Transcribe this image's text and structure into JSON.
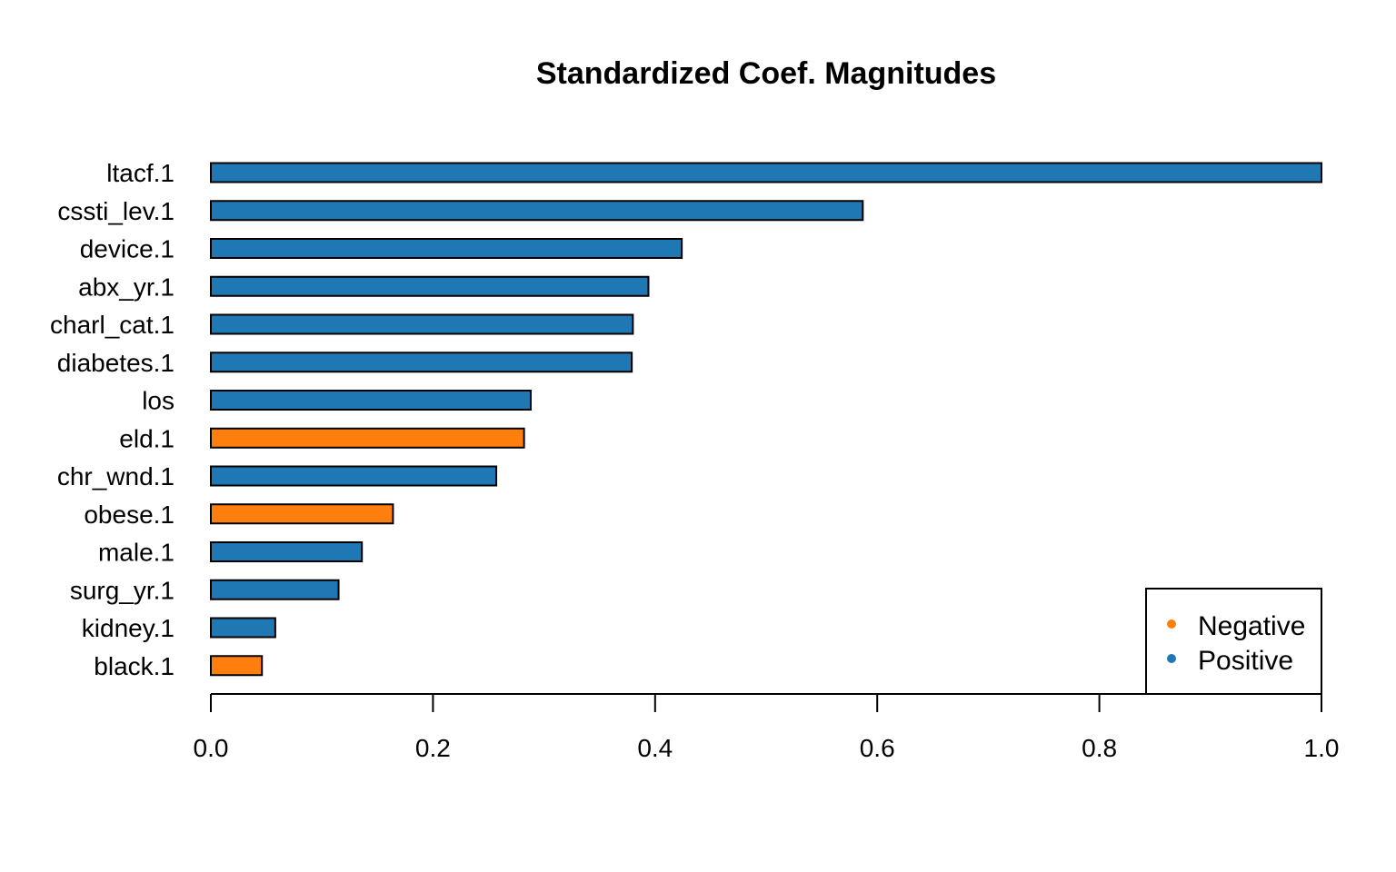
{
  "chart_data": {
    "type": "bar",
    "orientation": "horizontal",
    "title": "Standardized Coef. Magnitudes",
    "xlabel": "",
    "ylabel": "",
    "xlim": [
      0,
      1.0
    ],
    "xticks": [
      "0.0",
      "0.2",
      "0.4",
      "0.6",
      "0.8",
      "1.0"
    ],
    "grid": false,
    "legend_position": "bottom-right",
    "colors": {
      "Negative": "#ff7f0e",
      "Positive": "#1f77b4"
    },
    "legend": [
      {
        "label": "Negative",
        "color": "#ff7f0e"
      },
      {
        "label": "Positive",
        "color": "#1f77b4"
      }
    ],
    "bars": [
      {
        "category": "ltacf.1",
        "value": 1.0,
        "sign": "Positive"
      },
      {
        "category": "cssti_lev.1",
        "value": 0.587,
        "sign": "Positive"
      },
      {
        "category": "device.1",
        "value": 0.424,
        "sign": "Positive"
      },
      {
        "category": "abx_yr.1",
        "value": 0.394,
        "sign": "Positive"
      },
      {
        "category": "charl_cat.1",
        "value": 0.38,
        "sign": "Positive"
      },
      {
        "category": "diabetes.1",
        "value": 0.379,
        "sign": "Positive"
      },
      {
        "category": "los",
        "value": 0.288,
        "sign": "Positive"
      },
      {
        "category": "eld.1",
        "value": 0.282,
        "sign": "Negative"
      },
      {
        "category": "chr_wnd.1",
        "value": 0.257,
        "sign": "Positive"
      },
      {
        "category": "obese.1",
        "value": 0.164,
        "sign": "Negative"
      },
      {
        "category": "male.1",
        "value": 0.136,
        "sign": "Positive"
      },
      {
        "category": "surg_yr.1",
        "value": 0.115,
        "sign": "Positive"
      },
      {
        "category": "kidney.1",
        "value": 0.058,
        "sign": "Positive"
      },
      {
        "category": "black.1",
        "value": 0.046,
        "sign": "Negative"
      }
    ]
  }
}
